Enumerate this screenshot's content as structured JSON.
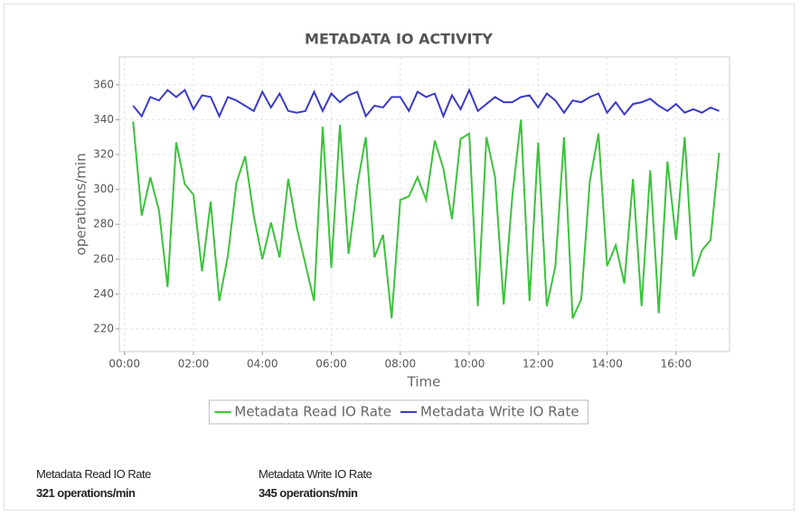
{
  "chart_data": {
    "type": "line",
    "title": "METADATA IO ACTIVITY",
    "x_label": "Time",
    "y_label": "operations/min",
    "x": [
      0.25,
      0.5,
      0.75,
      1,
      1.25,
      1.5,
      1.75,
      2,
      2.25,
      2.5,
      2.75,
      3,
      3.25,
      3.5,
      3.75,
      4,
      4.25,
      4.5,
      4.75,
      5,
      5.25,
      5.5,
      5.75,
      6,
      6.25,
      6.5,
      6.75,
      7,
      7.25,
      7.5,
      7.75,
      8,
      8.25,
      8.5,
      8.75,
      9,
      9.25,
      9.5,
      9.75,
      10,
      10.25,
      10.5,
      10.75,
      11,
      11.25,
      11.5,
      11.75,
      12,
      12.25,
      12.5,
      12.75,
      13,
      13.25,
      13.5,
      13.75,
      14,
      14.25,
      14.5,
      14.75,
      15,
      15.25,
      15.5,
      15.75,
      16,
      16.25,
      16.5,
      16.75,
      17,
      17.25
    ],
    "series": [
      {
        "name": "Metadata Read IO Rate",
        "color": "#3cc23c",
        "values": [
          339,
          285,
          307,
          288,
          244,
          327,
          303,
          297,
          253,
          293,
          236,
          262,
          304,
          319,
          285,
          260,
          281,
          261,
          306,
          278,
          257,
          236,
          336,
          255,
          337,
          263,
          302,
          330,
          261,
          274,
          226,
          294,
          296,
          307,
          294,
          328,
          312,
          283,
          329,
          332,
          233,
          330,
          307,
          234,
          296,
          340,
          236,
          327,
          233,
          256,
          330,
          226,
          237,
          305,
          332,
          256,
          268,
          246,
          306,
          233,
          311,
          229,
          316,
          271,
          330,
          250,
          265,
          271,
          321
        ]
      },
      {
        "name": "Metadata Write IO Rate",
        "color": "#3a3ac8",
        "values": [
          348,
          342,
          353,
          351,
          357,
          353,
          357,
          346,
          354,
          353,
          342,
          353,
          351,
          348,
          345,
          356,
          347,
          355,
          345,
          344,
          345,
          356,
          345,
          355,
          350,
          354,
          356,
          342,
          348,
          347,
          353,
          353,
          345,
          356,
          353,
          355,
          342,
          354,
          346,
          357,
          345,
          349,
          353,
          350,
          350,
          353,
          354,
          347,
          355,
          351,
          344,
          351,
          350,
          353,
          355,
          344,
          350,
          343,
          349,
          350,
          352,
          348,
          345,
          349,
          344,
          346,
          344,
          347,
          345
        ]
      }
    ],
    "xlim": [
      -0.15,
      17.55
    ],
    "xticks": [
      {
        "value": 0,
        "label": "00:00"
      },
      {
        "value": 2,
        "label": "02:00"
      },
      {
        "value": 4,
        "label": "04:00"
      },
      {
        "value": 6,
        "label": "06:00"
      },
      {
        "value": 8,
        "label": "08:00"
      },
      {
        "value": 10,
        "label": "10:00"
      },
      {
        "value": 12,
        "label": "12:00"
      },
      {
        "value": 14,
        "label": "14:00"
      },
      {
        "value": 16,
        "label": "16:00"
      }
    ],
    "ylim": [
      207,
      376
    ],
    "yticks": [
      220,
      240,
      260,
      280,
      300,
      320,
      340,
      360
    ],
    "grid": true,
    "legend": "bottom"
  },
  "summary": [
    {
      "label": "Metadata Read IO Rate",
      "value": "321 operations/min"
    },
    {
      "label": "Metadata Write IO Rate",
      "value": "345 operations/min"
    }
  ]
}
